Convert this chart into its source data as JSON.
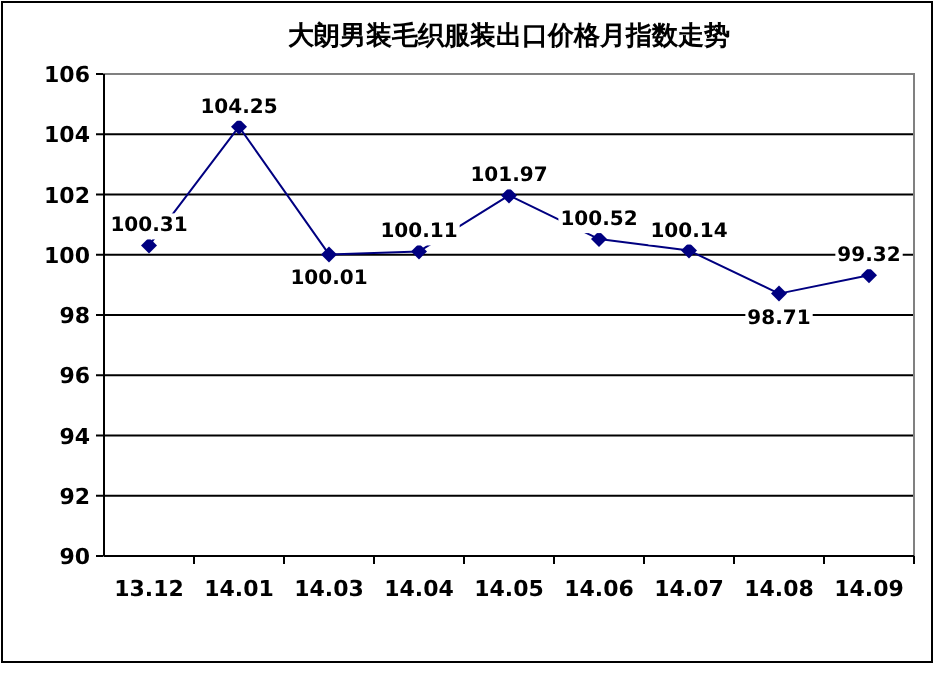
{
  "chart_data": {
    "type": "line",
    "title": "大朗男装毛织服装出口价格月指数走势",
    "categories": [
      "13.12",
      "14.01",
      "14.03",
      "14.04",
      "14.05",
      "14.06",
      "14.07",
      "14.08",
      "14.09"
    ],
    "series": [
      {
        "color": "#000080",
        "values": [
          100.31,
          104.25,
          100.01,
          100.11,
          101.97,
          100.52,
          100.14,
          98.71,
          99.32
        ]
      }
    ],
    "ylim": [
      90,
      106
    ],
    "yticks": [
      90,
      92,
      94,
      96,
      98,
      100,
      102,
      104,
      106
    ],
    "grid": "y",
    "marker": "diamond",
    "line_style": "solid",
    "data_labels": true
  }
}
